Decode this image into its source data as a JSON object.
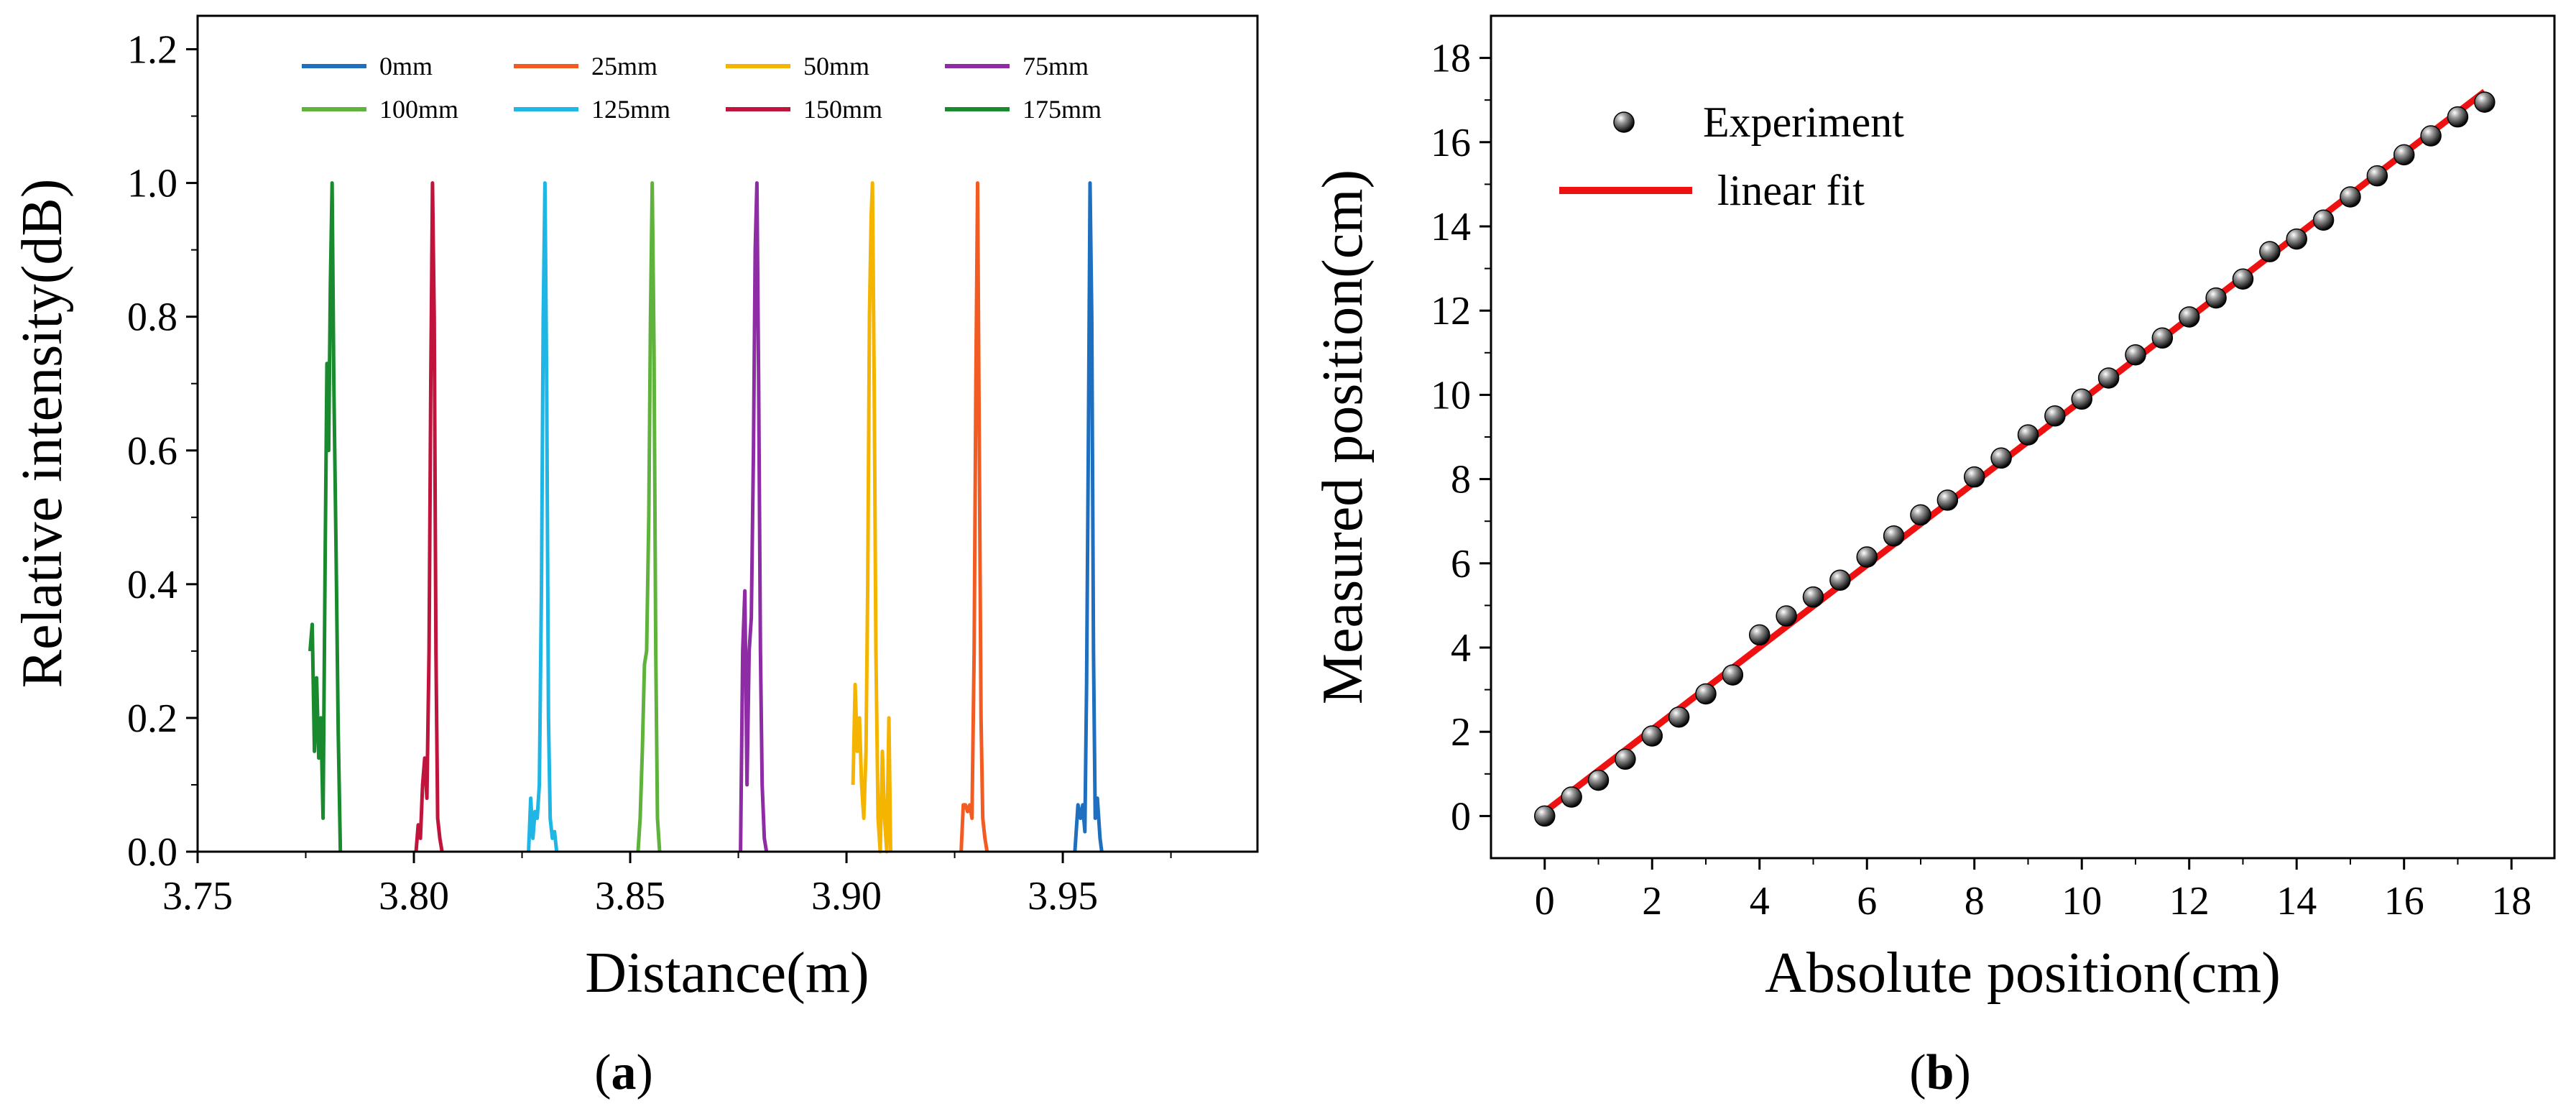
{
  "chart_data": [
    {
      "type": "line",
      "panel_label": "a",
      "xlabel": "Distance(m)",
      "ylabel": "Relative intensity(dB)",
      "xlim": [
        3.75,
        3.995
      ],
      "ylim": [
        0,
        1.25
      ],
      "xticks": [
        3.75,
        3.8,
        3.85,
        3.9,
        3.95
      ],
      "xtick_labels": [
        "3.75",
        "3.80",
        "3.85",
        "3.90",
        "3.95"
      ],
      "yticks": [
        0.0,
        0.2,
        0.4,
        0.6,
        0.8,
        1.0,
        1.2
      ],
      "ytick_labels": [
        "0.0",
        "0.2",
        "0.4",
        "0.6",
        "0.8",
        "1.0",
        "1.2"
      ],
      "legend_position": "top",
      "series": [
        {
          "name": "0mm",
          "color": "#1f6fc0",
          "x": [
            3.9528,
            3.9535,
            3.9541,
            3.9546,
            3.9551,
            3.9555,
            3.9559,
            3.9563,
            3.9567,
            3.9571,
            3.9575,
            3.958,
            3.9586,
            3.959
          ],
          "y": [
            0,
            0.07,
            0.05,
            0.07,
            0.03,
            0.25,
            0.6,
            1.0,
            0.8,
            0.3,
            0.05,
            0.08,
            0.02,
            0
          ]
        },
        {
          "name": "25mm",
          "color": "#f25c22",
          "x": [
            3.9265,
            3.927,
            3.9275,
            3.928,
            3.9285,
            3.929,
            3.9295,
            3.9299,
            3.9303,
            3.9307,
            3.9311,
            3.9315,
            3.932,
            3.9325
          ],
          "y": [
            0,
            0.07,
            0.07,
            0.06,
            0.07,
            0.05,
            0.3,
            0.7,
            1.0,
            0.6,
            0.2,
            0.05,
            0.02,
            0
          ]
        },
        {
          "name": "50mm",
          "color": "#f5b400",
          "x": [
            3.9015,
            3.902,
            3.9025,
            3.903,
            3.9035,
            3.904,
            3.9045,
            3.9049,
            3.9053,
            3.9057,
            3.906,
            3.9064,
            3.9068,
            3.9073,
            3.9078,
            3.9083,
            3.9088,
            3.9093,
            3.9098,
            3.9102
          ],
          "y": [
            0.1,
            0.25,
            0.15,
            0.2,
            0.1,
            0.05,
            0.15,
            0.4,
            0.8,
            0.95,
            1.0,
            0.7,
            0.3,
            0.05,
            0.0,
            0.15,
            0.05,
            0.0,
            0.2,
            0.0
          ]
        },
        {
          "name": "75mm",
          "color": "#8e2ca6",
          "x": [
            3.8755,
            3.876,
            3.8765,
            3.877,
            3.8775,
            3.878,
            3.8785,
            3.8789,
            3.8793,
            3.8797,
            3.8801,
            3.8805,
            3.881,
            3.8815
          ],
          "y": [
            0,
            0.3,
            0.39,
            0.1,
            0.3,
            0.35,
            0.6,
            0.9,
            1.0,
            0.7,
            0.3,
            0.1,
            0.02,
            0
          ]
        },
        {
          "name": "100mm",
          "color": "#5fb33c",
          "x": [
            3.8518,
            3.8523,
            3.8528,
            3.8533,
            3.8538,
            3.8543,
            3.8547,
            3.8551,
            3.8555,
            3.8559,
            3.8563,
            3.8568
          ],
          "y": [
            0,
            0.05,
            0.15,
            0.28,
            0.3,
            0.5,
            0.8,
            1.0,
            0.75,
            0.3,
            0.05,
            0
          ]
        },
        {
          "name": "125mm",
          "color": "#1fb6e6",
          "x": [
            3.8265,
            3.827,
            3.8275,
            3.828,
            3.8285,
            3.829,
            3.8295,
            3.8299,
            3.8303,
            3.8307,
            3.8311,
            3.8315,
            3.832,
            3.8325,
            3.833
          ],
          "y": [
            0,
            0.08,
            0.02,
            0.06,
            0.05,
            0.1,
            0.4,
            0.8,
            1.0,
            0.7,
            0.2,
            0.05,
            0.02,
            0.03,
            0
          ]
        },
        {
          "name": "150mm",
          "color": "#c0143c",
          "x": [
            3.8005,
            3.801,
            3.8015,
            3.802,
            3.8025,
            3.803,
            3.8035,
            3.8039,
            3.8043,
            3.8047,
            3.8051,
            3.8055,
            3.806,
            3.8065
          ],
          "y": [
            0,
            0.04,
            0.02,
            0.1,
            0.14,
            0.08,
            0.3,
            0.7,
            1.0,
            0.8,
            0.3,
            0.05,
            0.02,
            0
          ]
        },
        {
          "name": "175mm",
          "color": "#1a8a2e",
          "x": [
            3.776,
            3.7765,
            3.777,
            3.7775,
            3.778,
            3.7785,
            3.779,
            3.7795,
            3.7799,
            3.7803,
            3.7807,
            3.7811,
            3.7815,
            3.782,
            3.7825,
            3.783
          ],
          "y": [
            0.3,
            0.34,
            0.15,
            0.26,
            0.14,
            0.2,
            0.05,
            0.45,
            0.73,
            0.6,
            0.85,
            1.0,
            0.7,
            0.45,
            0.18,
            0.0
          ]
        }
      ]
    },
    {
      "type": "scatter",
      "panel_label": "b",
      "xlabel": "Absolute position(cm)",
      "ylabel": "Measured position(cm)",
      "xlim": [
        -1.0,
        18.8
      ],
      "ylim": [
        -1.0,
        19.0
      ],
      "xticks": [
        0,
        2,
        4,
        6,
        8,
        10,
        12,
        14,
        16,
        18
      ],
      "xtick_labels": [
        "0",
        "2",
        "4",
        "6",
        "8",
        "10",
        "12",
        "14",
        "16",
        "18"
      ],
      "yticks": [
        0,
        2,
        4,
        6,
        8,
        10,
        12,
        14,
        16,
        18
      ],
      "ytick_labels": [
        "0",
        "2",
        "4",
        "6",
        "8",
        "10",
        "12",
        "14",
        "16",
        "18"
      ],
      "legend_position": "top-left",
      "series": [
        {
          "name": "Experiment",
          "color": "#111111",
          "x": [
            0,
            0.5,
            1.0,
            1.5,
            2.0,
            2.5,
            3.0,
            3.5,
            4.0,
            4.5,
            5.0,
            5.5,
            6.0,
            6.5,
            7.0,
            7.5,
            8.0,
            8.5,
            9.0,
            9.5,
            10.0,
            10.5,
            11.0,
            11.5,
            12.0,
            12.5,
            13.0,
            13.5,
            14.0,
            14.5,
            15.0,
            15.5,
            16.0,
            16.5,
            17.0,
            17.5
          ],
          "y": [
            0.0,
            0.45,
            0.85,
            1.35,
            1.9,
            2.35,
            2.9,
            3.35,
            4.3,
            4.75,
            5.2,
            5.6,
            6.15,
            6.65,
            7.15,
            7.5,
            8.05,
            8.5,
            9.05,
            9.5,
            9.9,
            10.4,
            10.95,
            11.35,
            11.85,
            12.3,
            12.75,
            13.4,
            13.7,
            14.15,
            14.7,
            15.2,
            15.7,
            16.15,
            16.6,
            16.95
          ]
        },
        {
          "name": "linear fit",
          "color": "#ee1111",
          "x": [
            0.0,
            17.5
          ],
          "y": [
            0.1,
            17.2
          ]
        }
      ]
    }
  ],
  "captions": {
    "a": "(a)",
    "b": "(b)"
  }
}
